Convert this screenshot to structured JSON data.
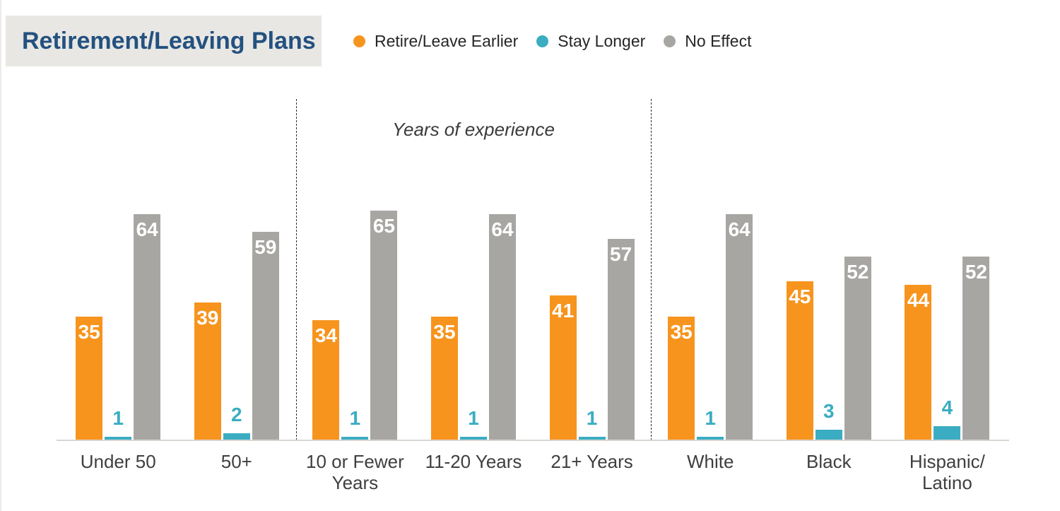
{
  "page": {
    "title_box": {
      "label": "Retirement/Leaving Plans"
    }
  },
  "legend": {
    "items": [
      {
        "label": "Retire/Leave Earlier",
        "color": "#F7941E"
      },
      {
        "label": "Stay Longer",
        "color": "#3BADC2"
      },
      {
        "label": "No Effect",
        "color": "#A8A6A3"
      }
    ]
  },
  "chart_data": {
    "type": "bar",
    "title": "Retirement/Leaving Plans",
    "categories": [
      "Under 50",
      "50+",
      "10 or Fewer\nYears",
      "11-20 Years",
      "21+ Years",
      "White",
      "Black",
      "Hispanic/\nLatino"
    ],
    "series": [
      {
        "name": "Retire/Leave Earlier",
        "color": "#F7941E",
        "values": [
          35,
          39,
          34,
          35,
          41,
          35,
          45,
          44
        ]
      },
      {
        "name": "Stay Longer",
        "color": "#3BADC2",
        "values": [
          1,
          2,
          1,
          1,
          1,
          1,
          3,
          4
        ]
      },
      {
        "name": "No Effect",
        "color": "#A8A6A3",
        "values": [
          64,
          59,
          65,
          64,
          57,
          64,
          52,
          52
        ]
      }
    ],
    "section_label": "Years of experience",
    "section_label_over_categories": [
      "10 or Fewer Years",
      "11-20 Years",
      "21+ Years"
    ],
    "separators_after_category_index": [
      1,
      4
    ],
    "ylim": [
      0,
      66
    ],
    "grid": false,
    "legend_position": "top",
    "value_label_rule": "values under 5 shown above bar in series color; larger values inside bar top in white",
    "colors": {
      "title_text": "#24517F",
      "title_background": "#E8E7E4",
      "axis_line": "#D8D6D3",
      "category_text": "#3F3F3F",
      "legend_text": "#262626",
      "separator_line": "#2F2F2F"
    }
  }
}
